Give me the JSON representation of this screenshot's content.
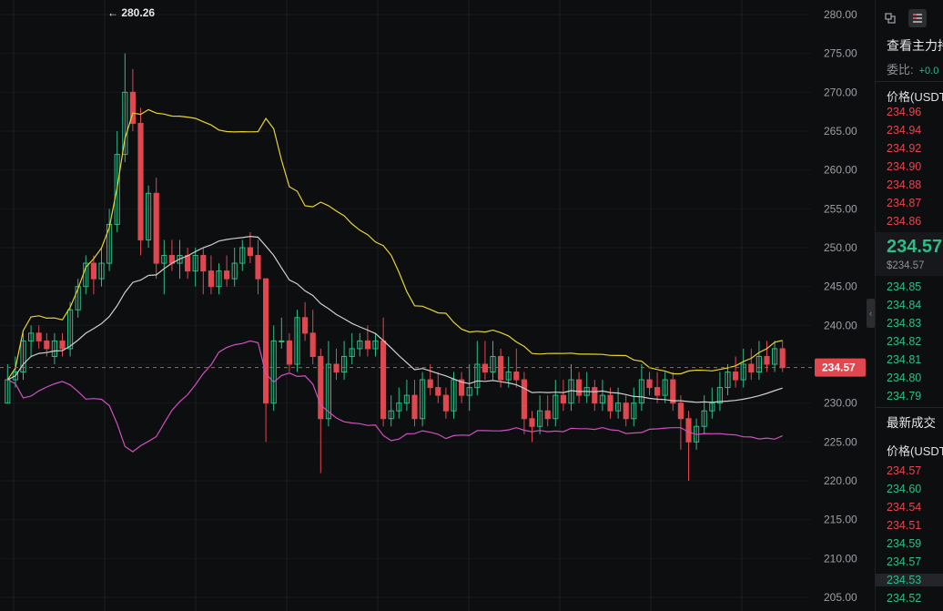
{
  "chart": {
    "y_ticks": [
      "280.00",
      "275.00",
      "270.00",
      "265.00",
      "260.00",
      "255.00",
      "250.00",
      "245.00",
      "240.00",
      "235.00",
      "230.00",
      "225.00",
      "220.00",
      "215.00",
      "210.00",
      "205.00"
    ],
    "max_annotation": "← 280.26",
    "current_price": "234.57",
    "colors": {
      "up": "#2ebd85",
      "down": "#e0474f",
      "ma_yellow": "#e8d430",
      "ma_white": "#cfcfcf",
      "ma_pink": "#d14fc0",
      "bg": "#0d0e10"
    }
  },
  "chart_data": {
    "type": "candlestick",
    "price_range": [
      205,
      281
    ],
    "candles": [
      [
        230,
        233,
        235,
        230
      ],
      [
        233,
        234,
        236,
        232
      ],
      [
        234,
        238,
        239,
        233
      ],
      [
        238,
        239,
        240,
        236
      ],
      [
        239,
        238,
        240,
        237
      ],
      [
        238,
        237,
        239,
        236
      ],
      [
        236,
        238,
        239,
        235
      ],
      [
        238,
        237,
        239,
        236
      ],
      [
        237,
        242,
        243,
        236
      ],
      [
        242,
        245,
        246,
        241
      ],
      [
        245,
        248,
        249,
        244
      ],
      [
        248,
        246,
        249,
        244
      ],
      [
        246,
        248,
        250,
        245
      ],
      [
        248,
        253,
        255,
        247
      ],
      [
        253,
        262,
        265,
        252
      ],
      [
        262,
        270,
        275,
        261
      ],
      [
        270,
        266,
        273,
        265
      ],
      [
        266,
        251,
        268,
        249
      ],
      [
        251,
        257,
        258,
        250
      ],
      [
        257,
        248,
        259,
        246
      ],
      [
        248,
        249,
        251,
        244
      ],
      [
        249,
        248,
        251,
        247
      ],
      [
        248,
        249,
        251,
        246
      ],
      [
        249,
        247,
        250,
        246
      ],
      [
        247,
        249,
        250,
        245
      ],
      [
        249,
        247,
        250,
        244
      ],
      [
        247,
        245,
        249,
        244
      ],
      [
        245,
        247,
        248,
        244
      ],
      [
        247,
        246,
        249,
        245
      ],
      [
        246,
        248,
        250,
        245
      ],
      [
        248,
        250,
        251,
        247
      ],
      [
        250,
        249,
        252,
        248
      ],
      [
        249,
        246,
        251,
        244
      ],
      [
        246,
        230,
        246,
        225
      ],
      [
        230,
        238,
        240,
        229
      ],
      [
        238,
        238,
        241,
        237
      ],
      [
        238,
        235,
        239,
        234
      ],
      [
        235,
        241,
        242,
        234
      ],
      [
        241,
        239,
        243,
        238
      ],
      [
        239,
        236,
        242,
        235
      ],
      [
        236,
        228,
        237,
        221
      ],
      [
        228,
        235,
        238,
        227
      ],
      [
        235,
        234,
        237,
        233
      ],
      [
        234,
        236,
        238,
        233
      ],
      [
        236,
        237,
        239,
        235
      ],
      [
        237,
        238,
        239,
        236
      ],
      [
        238,
        237,
        240,
        236
      ],
      [
        237,
        238,
        239,
        236
      ],
      [
        238,
        228,
        241,
        227
      ],
      [
        228,
        229,
        231,
        227
      ],
      [
        229,
        230,
        232,
        228
      ],
      [
        230,
        231,
        233,
        229
      ],
      [
        231,
        228,
        233,
        227
      ],
      [
        228,
        233,
        234,
        227
      ],
      [
        233,
        232,
        235,
        231
      ],
      [
        232,
        231,
        234,
        230
      ],
      [
        231,
        229,
        232,
        228
      ],
      [
        229,
        233,
        234,
        228
      ],
      [
        233,
        231,
        234,
        230
      ],
      [
        231,
        232,
        235,
        229
      ],
      [
        232,
        235,
        238,
        231
      ],
      [
        235,
        234,
        238,
        233
      ],
      [
        234,
        236,
        238,
        233
      ],
      [
        236,
        233,
        237,
        232
      ],
      [
        233,
        234,
        236,
        232
      ],
      [
        234,
        233,
        237,
        232
      ],
      [
        233,
        228,
        234,
        226
      ],
      [
        228,
        227,
        229,
        225
      ],
      [
        227,
        229,
        231,
        226
      ],
      [
        229,
        228,
        231,
        227
      ],
      [
        228,
        231,
        233,
        227
      ],
      [
        231,
        230,
        233,
        229
      ],
      [
        230,
        233,
        235,
        229
      ],
      [
        233,
        231,
        234,
        230
      ],
      [
        231,
        232,
        234,
        230
      ],
      [
        232,
        230,
        233,
        229
      ],
      [
        230,
        231,
        233,
        229
      ],
      [
        231,
        229,
        232,
        228
      ],
      [
        229,
        230,
        232,
        228
      ],
      [
        230,
        228,
        231,
        227
      ],
      [
        228,
        230,
        232,
        227
      ],
      [
        230,
        233,
        235,
        229
      ],
      [
        233,
        232,
        234,
        231
      ],
      [
        232,
        231,
        234,
        230
      ],
      [
        231,
        233,
        234,
        230
      ],
      [
        233,
        230,
        234,
        229
      ],
      [
        230,
        228,
        231,
        224
      ],
      [
        228,
        225,
        229,
        220
      ],
      [
        225,
        227,
        228,
        224
      ],
      [
        227,
        229,
        231,
        226
      ],
      [
        229,
        230,
        232,
        228
      ],
      [
        230,
        232,
        234,
        229
      ],
      [
        232,
        234,
        235,
        231
      ],
      [
        234,
        233,
        236,
        232
      ],
      [
        233,
        235,
        237,
        232
      ],
      [
        235,
        234,
        237,
        233
      ],
      [
        234,
        236,
        238,
        233
      ],
      [
        236,
        235,
        238,
        234
      ],
      [
        235,
        237,
        238,
        234
      ],
      [
        237,
        234.57,
        238,
        234
      ]
    ]
  },
  "orderbook": {
    "title": "查看主力持",
    "ratio_label": "委比:",
    "ratio_value": "+0.0",
    "price_header": "价格(USDT",
    "asks": [
      "234.96",
      "234.94",
      "234.92",
      "234.90",
      "234.88",
      "234.87",
      "234.86"
    ],
    "last_price": "234.57",
    "last_price_usd": "$234.57",
    "bids": [
      "234.85",
      "234.84",
      "234.83",
      "234.82",
      "234.81",
      "234.80",
      "234.79"
    ],
    "trades_title": "最新成交",
    "trades_header": "价格(USDT",
    "trades": [
      {
        "p": "234.57",
        "side": "sell"
      },
      {
        "p": "234.60",
        "side": "buy"
      },
      {
        "p": "234.54",
        "side": "sell"
      },
      {
        "p": "234.51",
        "side": "sell"
      },
      {
        "p": "234.59",
        "side": "buy"
      },
      {
        "p": "234.57",
        "side": "buy"
      },
      {
        "p": "234.53",
        "side": "buy"
      },
      {
        "p": "234.52",
        "side": "buy"
      }
    ]
  }
}
